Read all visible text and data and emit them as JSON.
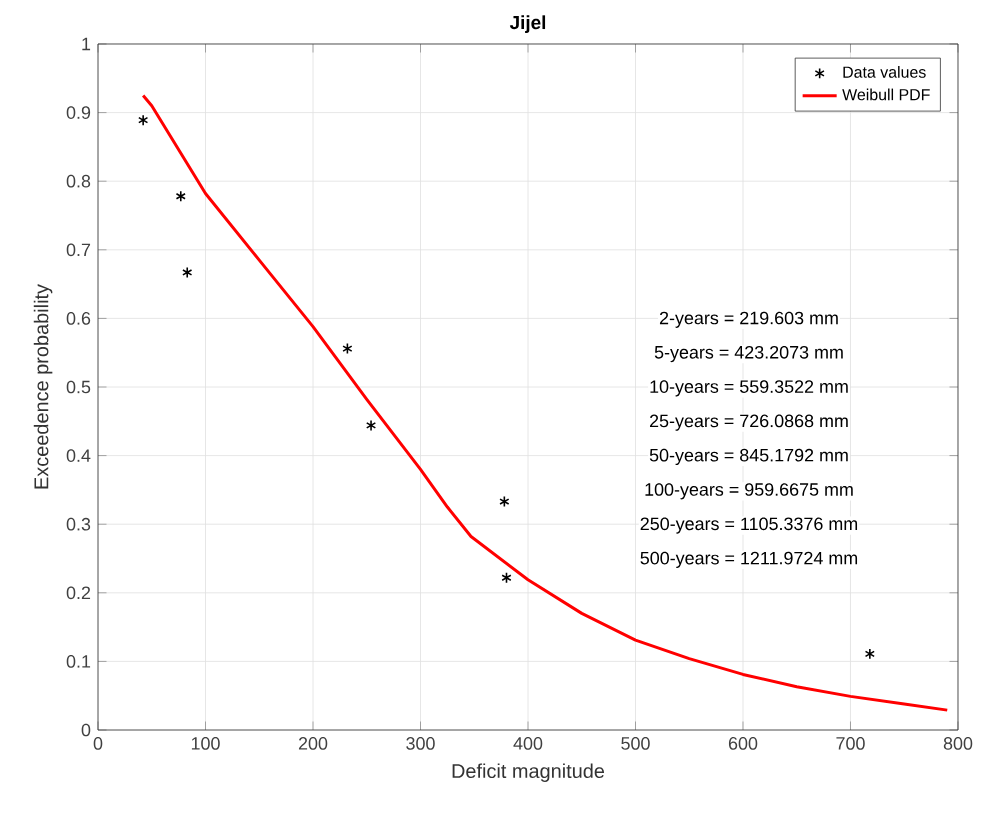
{
  "chart_data": {
    "type": "scatter",
    "title": "Jijel",
    "xlabel": "Deficit magnitude",
    "ylabel": "Exceedence probability",
    "xlim": [
      0,
      800
    ],
    "ylim": [
      0,
      1
    ],
    "xticks": [
      0,
      100,
      200,
      300,
      400,
      500,
      600,
      700,
      800
    ],
    "yticks": [
      0,
      0.1,
      0.2,
      0.3,
      0.4,
      0.5,
      0.6,
      0.7,
      0.8,
      0.9,
      1
    ],
    "grid": true,
    "legend": "top right",
    "series": [
      {
        "name": "Data values",
        "marker": "cross",
        "color": "#000000",
        "x": [
          42,
          77,
          83,
          232,
          254,
          378,
          380,
          718
        ],
        "values": [
          0.889,
          0.778,
          0.667,
          0.556,
          0.444,
          0.333,
          0.222,
          0.111
        ]
      },
      {
        "name": "Weibull PDF",
        "type": "line",
        "marker": "none",
        "color": "#ff0000",
        "x": [
          42,
          50,
          100,
          150,
          200,
          250,
          300,
          325,
          347,
          400,
          450,
          500,
          550,
          600,
          650,
          700,
          750,
          790
        ],
        "values": [
          0.925,
          0.91,
          0.782,
          0.685,
          0.588,
          0.482,
          0.38,
          0.325,
          0.282,
          0.219,
          0.17,
          0.131,
          0.104,
          0.081,
          0.063,
          0.049,
          0.038,
          0.029
        ]
      }
    ],
    "annotations": [
      "2-years = 219.603  mm",
      "5-years = 423.2073  mm",
      "10-years = 559.3522  mm",
      "25-years = 726.0868  mm",
      "50-years = 845.1792  mm",
      "100-years = 959.6675  mm",
      "250-years = 1105.3376  mm",
      "500-years = 1211.9724  mm"
    ]
  }
}
